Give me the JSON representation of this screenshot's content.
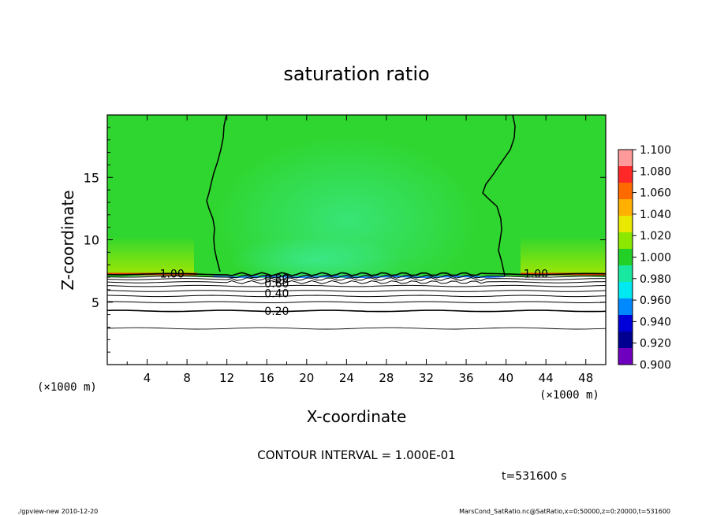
{
  "chart_data": {
    "type": "heatmap",
    "title": "saturation ratio",
    "xlabel": "X-coordinate",
    "ylabel": "Z-coordinate",
    "x_unit": "(×1000 m)",
    "y_unit": "(×1000 m)",
    "xlim": [
      0,
      50
    ],
    "ylim": [
      0,
      20
    ],
    "x_ticks": [
      "4",
      "8",
      "12",
      "16",
      "20",
      "24",
      "28",
      "32",
      "36",
      "40",
      "44",
      "48"
    ],
    "y_ticks": [
      "5",
      "10",
      "15"
    ],
    "colorbar": {
      "range": [
        0.9,
        1.1
      ],
      "labels": [
        "1.100",
        "1.080",
        "1.060",
        "1.040",
        "1.020",
        "1.000",
        "0.980",
        "0.960",
        "0.940",
        "0.920",
        "0.900"
      ],
      "colors": [
        "#ff9a9a",
        "#ff2828",
        "#ff6a00",
        "#ffb000",
        "#e8e800",
        "#8ce800",
        "#22d028",
        "#19e8a0",
        "#00e8f0",
        "#0088ff",
        "#0000d8",
        "#000090",
        "#7000c0"
      ]
    },
    "background_level_color": "#2fd62f",
    "contour_labels": [
      {
        "text": "1.00",
        "x": 6.5,
        "z": 7.3
      },
      {
        "text": "1.00",
        "x": 43,
        "z": 7.3
      },
      {
        "text": "0.80",
        "x": 17,
        "z": 6.9
      },
      {
        "text": "0.60",
        "x": 17,
        "z": 6.5
      },
      {
        "text": "0.40",
        "x": 17,
        "z": 5.7
      },
      {
        "text": "0.20",
        "x": 17,
        "z": 4.3
      }
    ],
    "contour_levels_below": [
      0.2,
      0.3,
      0.4,
      0.5,
      0.6,
      0.7,
      0.8,
      0.9,
      1.0
    ],
    "contour_interval_text": "CONTOUR INTERVAL = 1.000E-01",
    "time_text": "t=531600  s"
  },
  "footer": {
    "left": "./gpview-new   2010-12-20",
    "right": "MarsCond_SatRatio.nc@SatRatio,x=0:50000,z=0:20000,t=531600"
  }
}
